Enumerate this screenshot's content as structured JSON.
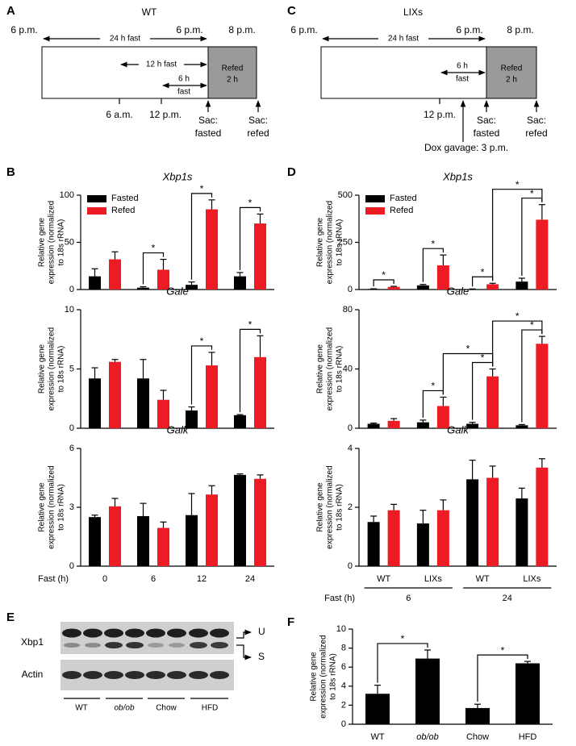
{
  "panel_labels": [
    "A",
    "B",
    "C",
    "D",
    "E",
    "F"
  ],
  "diagrams": [
    {
      "title": "WT",
      "times_top": [
        "6 p.m.",
        "6 p.m.",
        "8 p.m."
      ],
      "fasts": [
        [
          "24 h fast"
        ],
        [
          "12 h fast"
        ],
        [
          "6 h",
          "fast"
        ]
      ],
      "refed": [
        "Refed",
        "2 h"
      ],
      "times_bottom": [
        "6 a.m.",
        "12 p.m."
      ],
      "sac": [
        [
          "Sac:",
          "fasted"
        ],
        [
          "Sac:",
          "refed"
        ]
      ]
    },
    {
      "title": "LIXs",
      "times_top": [
        "6 p.m.",
        "6 p.m.",
        "8 p.m."
      ],
      "fasts": [
        [
          "24 h fast"
        ],
        [
          "6 h",
          "fast"
        ]
      ],
      "refed": [
        "Refed",
        "2 h"
      ],
      "times_bottom": [
        "12 p.m."
      ],
      "sac": [
        [
          "Sac:",
          "fasted"
        ],
        [
          "Sac:",
          "refed"
        ]
      ],
      "dox": "Dox gavage: 3 p.m."
    }
  ],
  "blot": {
    "rows": [
      "Xbp1",
      "Actin"
    ],
    "bands": [
      "U",
      "S"
    ],
    "lanes": [
      "WT",
      "ob/ob",
      "Chow",
      "HFD"
    ]
  },
  "chart_data": [
    {
      "type": "bar",
      "title": "Xbp1s",
      "ylabel": [
        "Relative gene",
        "expression (normalized",
        "to 18s rRNA)"
      ],
      "legend": "upper left",
      "categories": [
        null,
        null,
        null,
        null
      ],
      "ylim": [
        0,
        100
      ],
      "yticks": [
        0,
        50,
        100
      ],
      "series": [
        {
          "name": "Fasted",
          "color": "#000000",
          "values": [
            14,
            2,
            5,
            14
          ],
          "errors": [
            8,
            1,
            3,
            4
          ]
        },
        {
          "name": "Refed",
          "color": "#ed1c24",
          "values": [
            32,
            21,
            85,
            70
          ],
          "errors": [
            8,
            11,
            10,
            10
          ]
        }
      ],
      "comparisons": [
        {
          "label": "*",
          "a": [
            0,
            1
          ],
          "b": [
            1,
            1
          ]
        },
        {
          "label": "*",
          "a": [
            0,
            2
          ],
          "b": [
            1,
            2
          ]
        },
        {
          "label": "*",
          "a": [
            0,
            3
          ],
          "b": [
            1,
            3
          ]
        }
      ]
    },
    {
      "type": "bar",
      "title": "Gale",
      "ylabel": [
        "Relative gene",
        "expression (normalized",
        "to 18s rRNA)"
      ],
      "categories": [
        null,
        null,
        null,
        null
      ],
      "ylim": [
        0,
        10
      ],
      "yticks": [
        0,
        5,
        10
      ],
      "series": [
        {
          "color": "#000000",
          "values": [
            4.2,
            4.2,
            1.5,
            1.1
          ],
          "errors": [
            0.9,
            1.6,
            0.3,
            0.05
          ]
        },
        {
          "color": "#ed1c24",
          "values": [
            5.6,
            2.4,
            5.3,
            6.0
          ],
          "errors": [
            0.2,
            0.8,
            1.1,
            1.8
          ]
        }
      ],
      "comparisons": [
        {
          "label": "*",
          "a": [
            0,
            2
          ],
          "b": [
            1,
            2
          ]
        },
        {
          "label": "*",
          "a": [
            0,
            3
          ],
          "b": [
            1,
            3
          ]
        }
      ]
    },
    {
      "type": "bar",
      "title": "Galk",
      "ylabel": [
        "Relative gene",
        "expression (normalized",
        "to 18s rRNA)"
      ],
      "xlabel": "Fast (h)",
      "categories": [
        "0",
        "6",
        "12",
        "24"
      ],
      "ylim": [
        0,
        6
      ],
      "yticks": [
        0,
        3,
        6
      ],
      "series": [
        {
          "color": "#000000",
          "values": [
            2.5,
            2.55,
            2.6,
            4.65
          ],
          "errors": [
            0.1,
            0.65,
            1.1,
            0.05
          ]
        },
        {
          "color": "#ed1c24",
          "values": [
            3.05,
            1.95,
            3.65,
            4.45
          ],
          "errors": [
            0.4,
            0.3,
            0.45,
            0.2
          ]
        }
      ]
    },
    {
      "type": "bar",
      "title": "Xbp1s",
      "ylabel": [
        "Relative gene",
        "expression (normalized",
        "to 18s rRNA)"
      ],
      "legend": "upper left",
      "categories": [
        null,
        null,
        null,
        null
      ],
      "ylim": [
        0,
        500
      ],
      "yticks": [
        0,
        250,
        500
      ],
      "series": [
        {
          "name": "Fasted",
          "color": "#000000",
          "values": [
            3,
            22,
            2,
            42
          ],
          "errors": [
            1,
            5,
            1,
            18
          ]
        },
        {
          "name": "Refed",
          "color": "#ed1c24",
          "values": [
            14,
            128,
            28,
            370
          ],
          "errors": [
            3,
            55,
            5,
            80
          ]
        }
      ],
      "comparisons": [
        {
          "label": "*",
          "a": [
            0,
            0
          ],
          "b": [
            1,
            0
          ]
        },
        {
          "label": "*",
          "a": [
            0,
            1
          ],
          "b": [
            1,
            1
          ]
        },
        {
          "label": "*",
          "a": [
            0,
            2
          ],
          "b": [
            1,
            2
          ]
        },
        {
          "label": "*",
          "a": [
            0,
            3
          ],
          "b": [
            1,
            3
          ]
        },
        {
          "label": "*",
          "a": [
            1,
            2
          ],
          "b": [
            1,
            3
          ]
        }
      ]
    },
    {
      "type": "bar",
      "title": "Gale",
      "ylabel": [
        "Relative gene",
        "expression (normalized",
        "to 18s rRNA)"
      ],
      "categories": [
        null,
        null,
        null,
        null
      ],
      "ylim": [
        0,
        80
      ],
      "yticks": [
        0,
        40,
        80
      ],
      "series": [
        {
          "color": "#000000",
          "values": [
            3,
            4,
            3,
            2
          ],
          "errors": [
            0.5,
            1.5,
            1,
            0.5
          ]
        },
        {
          "color": "#ed1c24",
          "values": [
            5,
            15,
            35,
            57
          ],
          "errors": [
            1.5,
            6,
            5,
            5
          ]
        }
      ],
      "comparisons": [
        {
          "label": "*",
          "a": [
            0,
            1
          ],
          "b": [
            1,
            1
          ]
        },
        {
          "label": "*",
          "a": [
            0,
            2
          ],
          "b": [
            1,
            2
          ]
        },
        {
          "label": "*",
          "a": [
            0,
            3
          ],
          "b": [
            1,
            3
          ]
        },
        {
          "label": "*",
          "a": [
            1,
            1
          ],
          "b": [
            1,
            2
          ]
        },
        {
          "label": "*",
          "a": [
            1,
            2
          ],
          "b": [
            1,
            3
          ]
        }
      ]
    },
    {
      "type": "bar",
      "title": "Galk",
      "ylabel": [
        "Relative gene",
        "expression (normalized",
        "to 18s rRNA)"
      ],
      "xlabel": "Fast (h)",
      "categories": [
        "WT",
        "LIXs",
        "WT",
        "LIXs"
      ],
      "groups": [
        "6",
        "24"
      ],
      "ylim": [
        0,
        4
      ],
      "yticks": [
        0,
        2,
        4
      ],
      "series": [
        {
          "color": "#000000",
          "values": [
            1.5,
            1.45,
            2.95,
            2.3
          ],
          "errors": [
            0.2,
            0.45,
            0.65,
            0.35
          ]
        },
        {
          "color": "#ed1c24",
          "values": [
            1.9,
            1.9,
            3.0,
            3.35
          ],
          "errors": [
            0.2,
            0.35,
            0.4,
            0.3
          ]
        }
      ]
    },
    {
      "type": "bar",
      "ylabel": [
        "Relative gene",
        "expression (normalized",
        "to 18s rRNA)"
      ],
      "categories": [
        "WT",
        "ob/ob",
        "Chow",
        "HFD"
      ],
      "italic": [
        false,
        true,
        false,
        false
      ],
      "ylim": [
        0,
        10
      ],
      "yticks": [
        0,
        2,
        4,
        6,
        8,
        10
      ],
      "series": [
        {
          "color": "#000000",
          "values": [
            3.2,
            6.9,
            1.7,
            6.4
          ],
          "errors": [
            0.9,
            0.9,
            0.4,
            0.2
          ]
        }
      ],
      "comparisons": [
        {
          "label": "*",
          "a": [
            0,
            0
          ],
          "b": [
            0,
            1
          ]
        },
        {
          "label": "*",
          "a": [
            0,
            2
          ],
          "b": [
            0,
            3
          ]
        }
      ]
    }
  ]
}
